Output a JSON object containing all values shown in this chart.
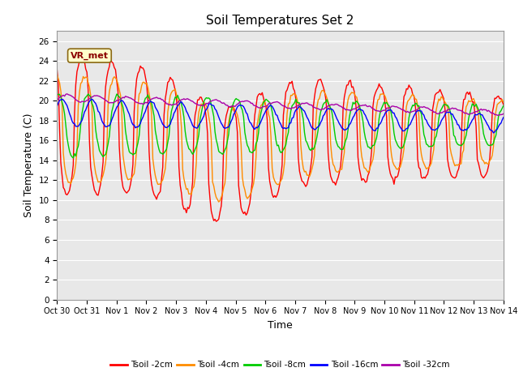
{
  "title": "Soil Temperatures Set 2",
  "xlabel": "Time",
  "ylabel": "Soil Temperature (C)",
  "ylim": [
    0,
    27
  ],
  "yticks": [
    0,
    2,
    4,
    6,
    8,
    10,
    12,
    14,
    16,
    18,
    20,
    22,
    24,
    26
  ],
  "x_tick_labels": [
    "Oct 30",
    "Oct 31",
    "Nov 1",
    "Nov 2",
    "Nov 3",
    "Nov 4",
    "Nov 5",
    "Nov 6",
    "Nov 7",
    "Nov 8",
    "Nov 9",
    "Nov 10",
    "Nov 11",
    "Nov 12",
    "Nov 13",
    "Nov 14"
  ],
  "colors": {
    "tsoil_2cm": "#ff0000",
    "tsoil_4cm": "#ff8c00",
    "tsoil_8cm": "#00cc00",
    "tsoil_16cm": "#0000ff",
    "tsoil_32cm": "#aa00aa"
  },
  "legend_labels": [
    "Tsoil -2cm",
    "Tsoil -4cm",
    "Tsoil -8cm",
    "Tsoil -16cm",
    "Tsoil -32cm"
  ],
  "annotation_text": "VR_met",
  "plot_bg_color": "#e8e8e8",
  "grid_color": "#ffffff",
  "title_fontsize": 11,
  "axis_fontsize": 9,
  "tick_fontsize": 7.5
}
